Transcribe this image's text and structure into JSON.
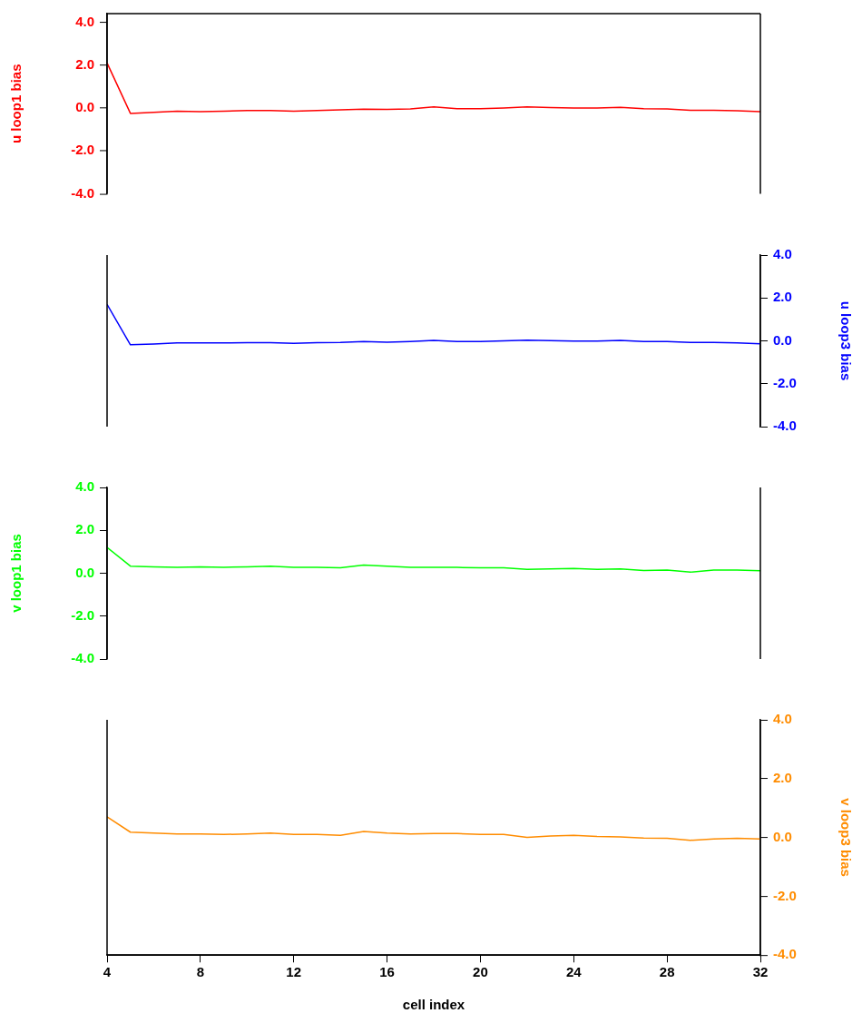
{
  "chart_data": [
    {
      "type": "line",
      "ylabel": "u loop1 bias",
      "x": [
        4,
        5,
        6,
        7,
        8,
        9,
        10,
        11,
        12,
        13,
        14,
        15,
        16,
        17,
        18,
        19,
        20,
        21,
        22,
        23,
        24,
        25,
        26,
        27,
        28,
        29,
        30,
        31,
        32
      ],
      "xlim": [
        4,
        32
      ],
      "tick_labels": "y",
      "grid": false,
      "ylim": [
        -4,
        4.4
      ],
      "yticks": [
        {
          "value": -4,
          "label": "-4.0"
        },
        {
          "value": -2,
          "label": "-2.0"
        },
        {
          "value": 0,
          "label": "0.0"
        },
        {
          "value": 2,
          "label": "2.0"
        },
        {
          "value": 4,
          "label": "4.0"
        }
      ],
      "series": [
        {
          "color": "#ff0000",
          "values": [
            2.1,
            -0.25,
            -0.2,
            -0.15,
            -0.17,
            -0.15,
            -0.12,
            -0.12,
            -0.15,
            -0.12,
            -0.08,
            -0.05,
            -0.06,
            -0.04,
            0.05,
            -0.03,
            -0.03,
            0.0,
            0.05,
            0.02,
            0.0,
            0.0,
            0.03,
            -0.03,
            -0.04,
            -0.1,
            -0.1,
            -0.13,
            -0.17
          ]
        }
      ]
    },
    {
      "type": "line",
      "y2label": "u loop3 bias",
      "x": [
        4,
        5,
        6,
        7,
        8,
        9,
        10,
        11,
        12,
        13,
        14,
        15,
        16,
        17,
        18,
        19,
        20,
        21,
        22,
        23,
        24,
        25,
        26,
        27,
        28,
        29,
        30,
        31,
        32
      ],
      "xlim": [
        4,
        32
      ],
      "tick_labels": "y",
      "grid": false,
      "y2lim": [
        -4,
        4
      ],
      "y2ticks": [
        {
          "value": -4,
          "label": "-4.0"
        },
        {
          "value": -2,
          "label": "-2.0"
        },
        {
          "value": 0,
          "label": "0.0"
        },
        {
          "value": 2,
          "label": "2.0"
        },
        {
          "value": 4,
          "label": "4.0"
        }
      ],
      "series": [
        {
          "axis": "y2",
          "color": "#0000ff",
          "values": [
            1.7,
            -0.18,
            -0.15,
            -0.1,
            -0.1,
            -0.1,
            -0.08,
            -0.08,
            -0.12,
            -0.08,
            -0.07,
            -0.03,
            -0.06,
            -0.03,
            0.02,
            -0.03,
            -0.03,
            0.0,
            0.03,
            0.01,
            -0.01,
            -0.01,
            0.02,
            -0.03,
            -0.03,
            -0.07,
            -0.07,
            -0.1,
            -0.14
          ]
        }
      ]
    },
    {
      "type": "line",
      "ylabel": "v loop1 bias",
      "x": [
        4,
        5,
        6,
        7,
        8,
        9,
        10,
        11,
        12,
        13,
        14,
        15,
        16,
        17,
        18,
        19,
        20,
        21,
        22,
        23,
        24,
        25,
        26,
        27,
        28,
        29,
        30,
        31,
        32
      ],
      "xlim": [
        4,
        32
      ],
      "tick_labels": "y",
      "grid": false,
      "ylim": [
        -4,
        4
      ],
      "yticks": [
        {
          "value": -4,
          "label": "-4.0"
        },
        {
          "value": -2,
          "label": "-2.0"
        },
        {
          "value": 0,
          "label": "0.0"
        },
        {
          "value": 2,
          "label": "2.0"
        },
        {
          "value": 4,
          "label": "4.0"
        }
      ],
      "series": [
        {
          "color": "#00ff00",
          "values": [
            1.2,
            0.33,
            0.3,
            0.28,
            0.3,
            0.28,
            0.3,
            0.33,
            0.27,
            0.28,
            0.25,
            0.38,
            0.33,
            0.28,
            0.27,
            0.27,
            0.25,
            0.25,
            0.18,
            0.2,
            0.22,
            0.18,
            0.2,
            0.13,
            0.15,
            0.05,
            0.15,
            0.15,
            0.12
          ]
        }
      ]
    },
    {
      "type": "line",
      "xlabel": "cell index",
      "y2label": "v loop3 bias",
      "x": [
        4,
        5,
        6,
        7,
        8,
        9,
        10,
        11,
        12,
        13,
        14,
        15,
        16,
        17,
        18,
        19,
        20,
        21,
        22,
        23,
        24,
        25,
        26,
        27,
        28,
        29,
        30,
        31,
        32
      ],
      "xlim": [
        4,
        32
      ],
      "xticks": [
        4,
        8,
        12,
        16,
        20,
        24,
        28,
        32
      ],
      "grid": false,
      "y2lim": [
        -4,
        4
      ],
      "y2ticks": [
        {
          "value": -4,
          "label": "-4.0"
        },
        {
          "value": -2,
          "label": "-2.0"
        },
        {
          "value": 0,
          "label": "0.0"
        },
        {
          "value": 2,
          "label": "2.0"
        },
        {
          "value": 4,
          "label": "4.0"
        }
      ],
      "series": [
        {
          "axis": "y2",
          "color": "#ff8c00",
          "values": [
            0.7,
            0.18,
            0.15,
            0.12,
            0.12,
            0.1,
            0.12,
            0.15,
            0.1,
            0.1,
            0.07,
            0.2,
            0.15,
            0.12,
            0.13,
            0.13,
            0.1,
            0.1,
            0.0,
            0.05,
            0.07,
            0.03,
            0.02,
            -0.02,
            -0.03,
            -0.1,
            -0.05,
            -0.03,
            -0.05
          ]
        }
      ]
    }
  ]
}
